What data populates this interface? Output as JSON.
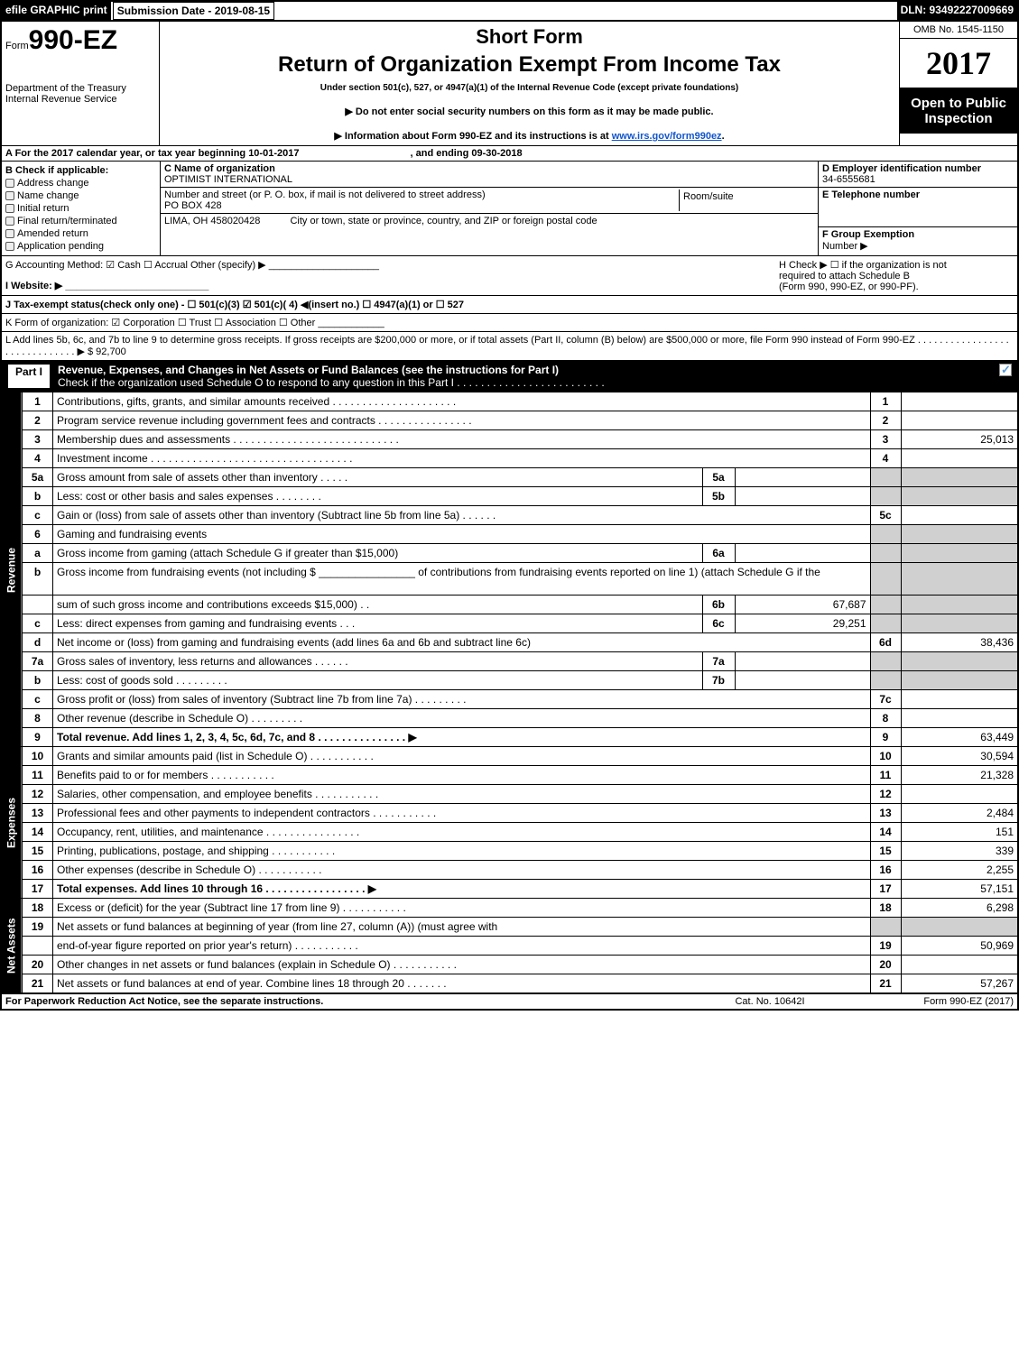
{
  "header": {
    "efile": "efile GRAPHIC print",
    "submission": "Submission Date - 2019-08-15",
    "dln": "DLN: 93492227009669"
  },
  "top": {
    "form_prefix": "Form",
    "form_no": "990-EZ",
    "dept1": "Department of the Treasury",
    "dept2": "Internal Revenue Service",
    "short_form": "Short Form",
    "title": "Return of Organization Exempt From Income Tax",
    "under": "Under section 501(c), 527, or 4947(a)(1) of the Internal Revenue Code (except private foundations)",
    "arrow1": "▶ Do not enter social security numbers on this form as it may be made public.",
    "arrow2_pre": "▶ Information about Form 990-EZ and its instructions is at ",
    "arrow2_link": "www.irs.gov/form990ez",
    "arrow2_post": ".",
    "omb": "OMB No. 1545-1150",
    "year": "2017",
    "open1": "Open to Public",
    "open2": "Inspection"
  },
  "lineA": {
    "label": "A  For the 2017 calendar year, or tax year beginning 10-01-2017",
    "end": ", and ending 09-30-2018"
  },
  "b": {
    "label": "B  Check if applicable:",
    "opts": [
      "Address change",
      "Name change",
      "Initial return",
      "Final return/terminated",
      "Amended return",
      "Application pending"
    ],
    "c_label": "C Name of organization",
    "c_val": "OPTIMIST INTERNATIONAL",
    "addr_label": "Number and street (or P. O. box, if mail is not delivered to street address)",
    "addr_val": "PO BOX 428",
    "room_label": "Room/suite",
    "city_val": "LIMA, OH  458020428",
    "city_label": "City or town, state or province, country, and ZIP or foreign postal code",
    "d_label": "D Employer identification number",
    "d_val": "34-6555681",
    "e_label": "E Telephone number",
    "f_label": "F Group Exemption",
    "f_label2": "Number    ▶"
  },
  "g": {
    "left": "G Accounting Method:   ☑ Cash   ☐ Accrual   Other (specify) ▶ ____________________",
    "h1": "H   Check ▶  ☐  if the organization is not",
    "h2": "required to attach Schedule B",
    "h3": "(Form 990, 990-EZ, or 990-PF)."
  },
  "i": "I Website: ▶ __________________________",
  "j": "J Tax-exempt status(check only one) - ☐ 501(c)(3)  ☑ 501(c)( 4) ◀(insert no.)  ☐ 4947(a)(1) or  ☐ 527",
  "k": "K Form of organization:  ☑ Corporation  ☐ Trust  ☐ Association  ☐ Other ____________",
  "l": {
    "text": "L Add lines 5b, 6c, and 7b to line 9 to determine gross receipts. If gross receipts are $200,000 or more, or if total assets (Part II, column (B) below) are $500,000 or more, file Form 990 instead of Form 990-EZ  .  .  .  .  .  .  .  .  .  .  .  .  .  .  .  .  .  .  .  .  .  .  .  .  .  .  .  .  .  .  ▶ $ 92,700"
  },
  "part1": {
    "label": "Part I",
    "title": "Revenue, Expenses, and Changes in Net Assets or Fund Balances (see the instructions for Part I)",
    "sub": "Check if the organization used Schedule O to respond to any question in this Part I .  .  .  .  .  .  .  .  .  .  .  .  .  .  .  .  .  .  .  .  .  .  .  .  ."
  },
  "sections": {
    "revenue": "Revenue",
    "expenses": "Expenses",
    "netassets": "Net Assets"
  },
  "rows": [
    {
      "n": "1",
      "d": "Contributions, gifts, grants, and similar amounts received .  .  .  .  .  .  .  .  .  .  .  .  .  .  .  .  .  .  .  .  .",
      "rn": "1",
      "rv": ""
    },
    {
      "n": "2",
      "d": "Program service revenue including government fees and contracts .  .  .  .  .  .  .  .  .  .  .  .  .  .  .  .",
      "rn": "2",
      "rv": ""
    },
    {
      "n": "3",
      "d": "Membership dues and assessments  .  .  .  .  .  .  .  .  .  .  .  .  .  .  .  .  .  .  .  .  .  .  .  .  .  .  .  .",
      "rn": "3",
      "rv": "25,013"
    },
    {
      "n": "4",
      "d": "Investment income  .  .  .  .  .  .  .  .  .  .  .  .  .  .  .  .  .  .  .  .  .  .  .  .  .  .  .  .  .  .  .  .  .  .",
      "rn": "4",
      "rv": ""
    },
    {
      "n": "5a",
      "d": "Gross amount from sale of assets other than inventory  .  .  .  .  .",
      "mn": "5a",
      "mv": "",
      "shade": true
    },
    {
      "n": "b",
      "d": "Less: cost or other basis and sales expenses .  .  .  .  .  .  .  .",
      "mn": "5b",
      "mv": "",
      "shade": true
    },
    {
      "n": "c",
      "d": "Gain or (loss) from sale of assets other than inventory (Subtract line 5b from line 5a)          .    .    .    .    .    .",
      "rn": "5c",
      "rv": ""
    },
    {
      "n": "6",
      "d": "Gaming and fundraising events",
      "shade": true
    },
    {
      "n": "a",
      "d": "Gross income from gaming (attach Schedule G if greater than $15,000)",
      "mn": "6a",
      "mv": "",
      "shade": true
    },
    {
      "n": "b",
      "d": "Gross income from fundraising events (not including $ ________________ of contributions from fundraising events reported on line 1) (attach Schedule G if the",
      "shade": true,
      "tall": true
    },
    {
      "n": "",
      "d": "sum of such gross income and contributions exceeds $15,000)          .    .",
      "mn": "6b",
      "mv": "67,687",
      "shade": true
    },
    {
      "n": "c",
      "d": "Less: direct expenses from gaming and fundraising events          .    .    .",
      "mn": "6c",
      "mv": "29,251",
      "shade": true
    },
    {
      "n": "d",
      "d": "Net income or (loss) from gaming and fundraising events (add lines 6a and 6b and subtract line 6c)",
      "rn": "6d",
      "rv": "38,436"
    },
    {
      "n": "7a",
      "d": "Gross sales of inventory, less returns and allowances          .    .    .    .    .    .",
      "mn": "7a",
      "mv": "",
      "shade": true
    },
    {
      "n": "b",
      "d": "Less: cost of goods sold                    .    .    .    .    .    .    .    .    .",
      "mn": "7b",
      "mv": "",
      "shade": true
    },
    {
      "n": "c",
      "d": "Gross profit or (loss) from sales of inventory (Subtract line 7b from line 7a)          .    .    .    .    .    .    .    .    .",
      "rn": "7c",
      "rv": ""
    },
    {
      "n": "8",
      "d": "Other revenue (describe in Schedule O)          .    .    .    .    .    .    .    .    .",
      "rn": "8",
      "rv": ""
    },
    {
      "n": "9",
      "d": "Total revenue. Add lines 1, 2, 3, 4, 5c, 6d, 7c, and 8          .    .    .    .    .    .    .    .    .    .    .    .    .    .    .    ▶",
      "rn": "9",
      "rv": "63,449",
      "bold": true
    }
  ],
  "exp_rows": [
    {
      "n": "10",
      "d": "Grants and similar amounts paid (list in Schedule O)          .    .    .    .    .    .    .    .    .    .    .",
      "rn": "10",
      "rv": "30,594"
    },
    {
      "n": "11",
      "d": "Benefits paid to or for members          .    .    .    .    .    .    .    .    .    .    .",
      "rn": "11",
      "rv": "21,328"
    },
    {
      "n": "12",
      "d": "Salaries, other compensation, and employee benefits          .    .    .    .    .    .    .    .    .    .    .",
      "rn": "12",
      "rv": ""
    },
    {
      "n": "13",
      "d": "Professional fees and other payments to independent contractors          .    .    .    .    .    .    .    .    .    .    .",
      "rn": "13",
      "rv": "2,484"
    },
    {
      "n": "14",
      "d": "Occupancy, rent, utilities, and maintenance        .    .    .    .    .    .    .    .    .    .    .    .    .    .    .    .",
      "rn": "14",
      "rv": "151"
    },
    {
      "n": "15",
      "d": "Printing, publications, postage, and shipping          .    .    .    .    .    .    .    .    .    .    .",
      "rn": "15",
      "rv": "339"
    },
    {
      "n": "16",
      "d": "Other expenses (describe in Schedule O)          .    .    .    .    .    .    .    .    .    .    .",
      "rn": "16",
      "rv": "2,255"
    },
    {
      "n": "17",
      "d": "Total expenses. Add lines 10 through 16          .    .    .    .    .    .    .    .    .    .    .    .    .    .    .    .    .    ▶",
      "rn": "17",
      "rv": "57,151",
      "bold": true
    }
  ],
  "na_rows": [
    {
      "n": "18",
      "d": "Excess or (deficit) for the year (Subtract line 17 from line 9)          .    .    .    .    .    .    .    .    .    .    .",
      "rn": "18",
      "rv": "6,298"
    },
    {
      "n": "19",
      "d": "Net assets or fund balances at beginning of year (from line 27, column (A)) (must agree with",
      "shade": true
    },
    {
      "n": "",
      "d": "end-of-year figure reported on prior year's return)          .    .    .    .    .    .    .    .    .    .    .",
      "rn": "19",
      "rv": "50,969"
    },
    {
      "n": "20",
      "d": "Other changes in net assets or fund balances (explain in Schedule O)          .    .    .    .    .    .    .    .    .    .    .",
      "rn": "20",
      "rv": ""
    },
    {
      "n": "21",
      "d": "Net assets or fund balances at end of year. Combine lines 18 through 20          .    .    .    .    .    .    .",
      "rn": "21",
      "rv": "57,267"
    }
  ],
  "footer": {
    "a": "For Paperwork Reduction Act Notice, see the separate instructions.",
    "b": "Cat. No. 10642I",
    "c": "Form 990-EZ (2017)"
  }
}
